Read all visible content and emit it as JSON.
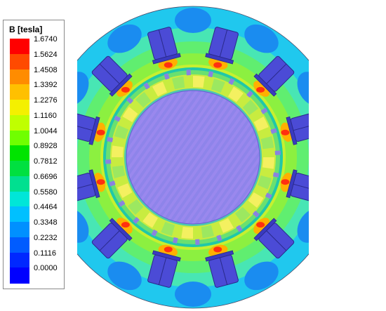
{
  "legend": {
    "title": "B [tesla]",
    "levels": [
      {
        "label": "1.6740",
        "color": "#ff0000"
      },
      {
        "label": "1.5624",
        "color": "#ff4a00"
      },
      {
        "label": "1.4508",
        "color": "#ff8c00"
      },
      {
        "label": "1.3392",
        "color": "#ffc000"
      },
      {
        "label": "1.2276",
        "color": "#f4f000"
      },
      {
        "label": "1.1160",
        "color": "#c0ff00"
      },
      {
        "label": "1.0044",
        "color": "#70ff00"
      },
      {
        "label": "0.8928",
        "color": "#00e400"
      },
      {
        "label": "0.7812",
        "color": "#00e040"
      },
      {
        "label": "0.6696",
        "color": "#00e090"
      },
      {
        "label": "0.5580",
        "color": "#00e6d8"
      },
      {
        "label": "0.4464",
        "color": "#00c0ff"
      },
      {
        "label": "0.3348",
        "color": "#0090ff"
      },
      {
        "label": "0.2232",
        "color": "#005cff"
      },
      {
        "label": "0.1116",
        "color": "#0028ff"
      },
      {
        "label": "0.0000",
        "color": "#0000ff"
      }
    ]
  },
  "plot": {
    "stator_slot_count": 12,
    "magnet_color": "#4b4bd6",
    "shaft_color": "#9a88ee"
  }
}
